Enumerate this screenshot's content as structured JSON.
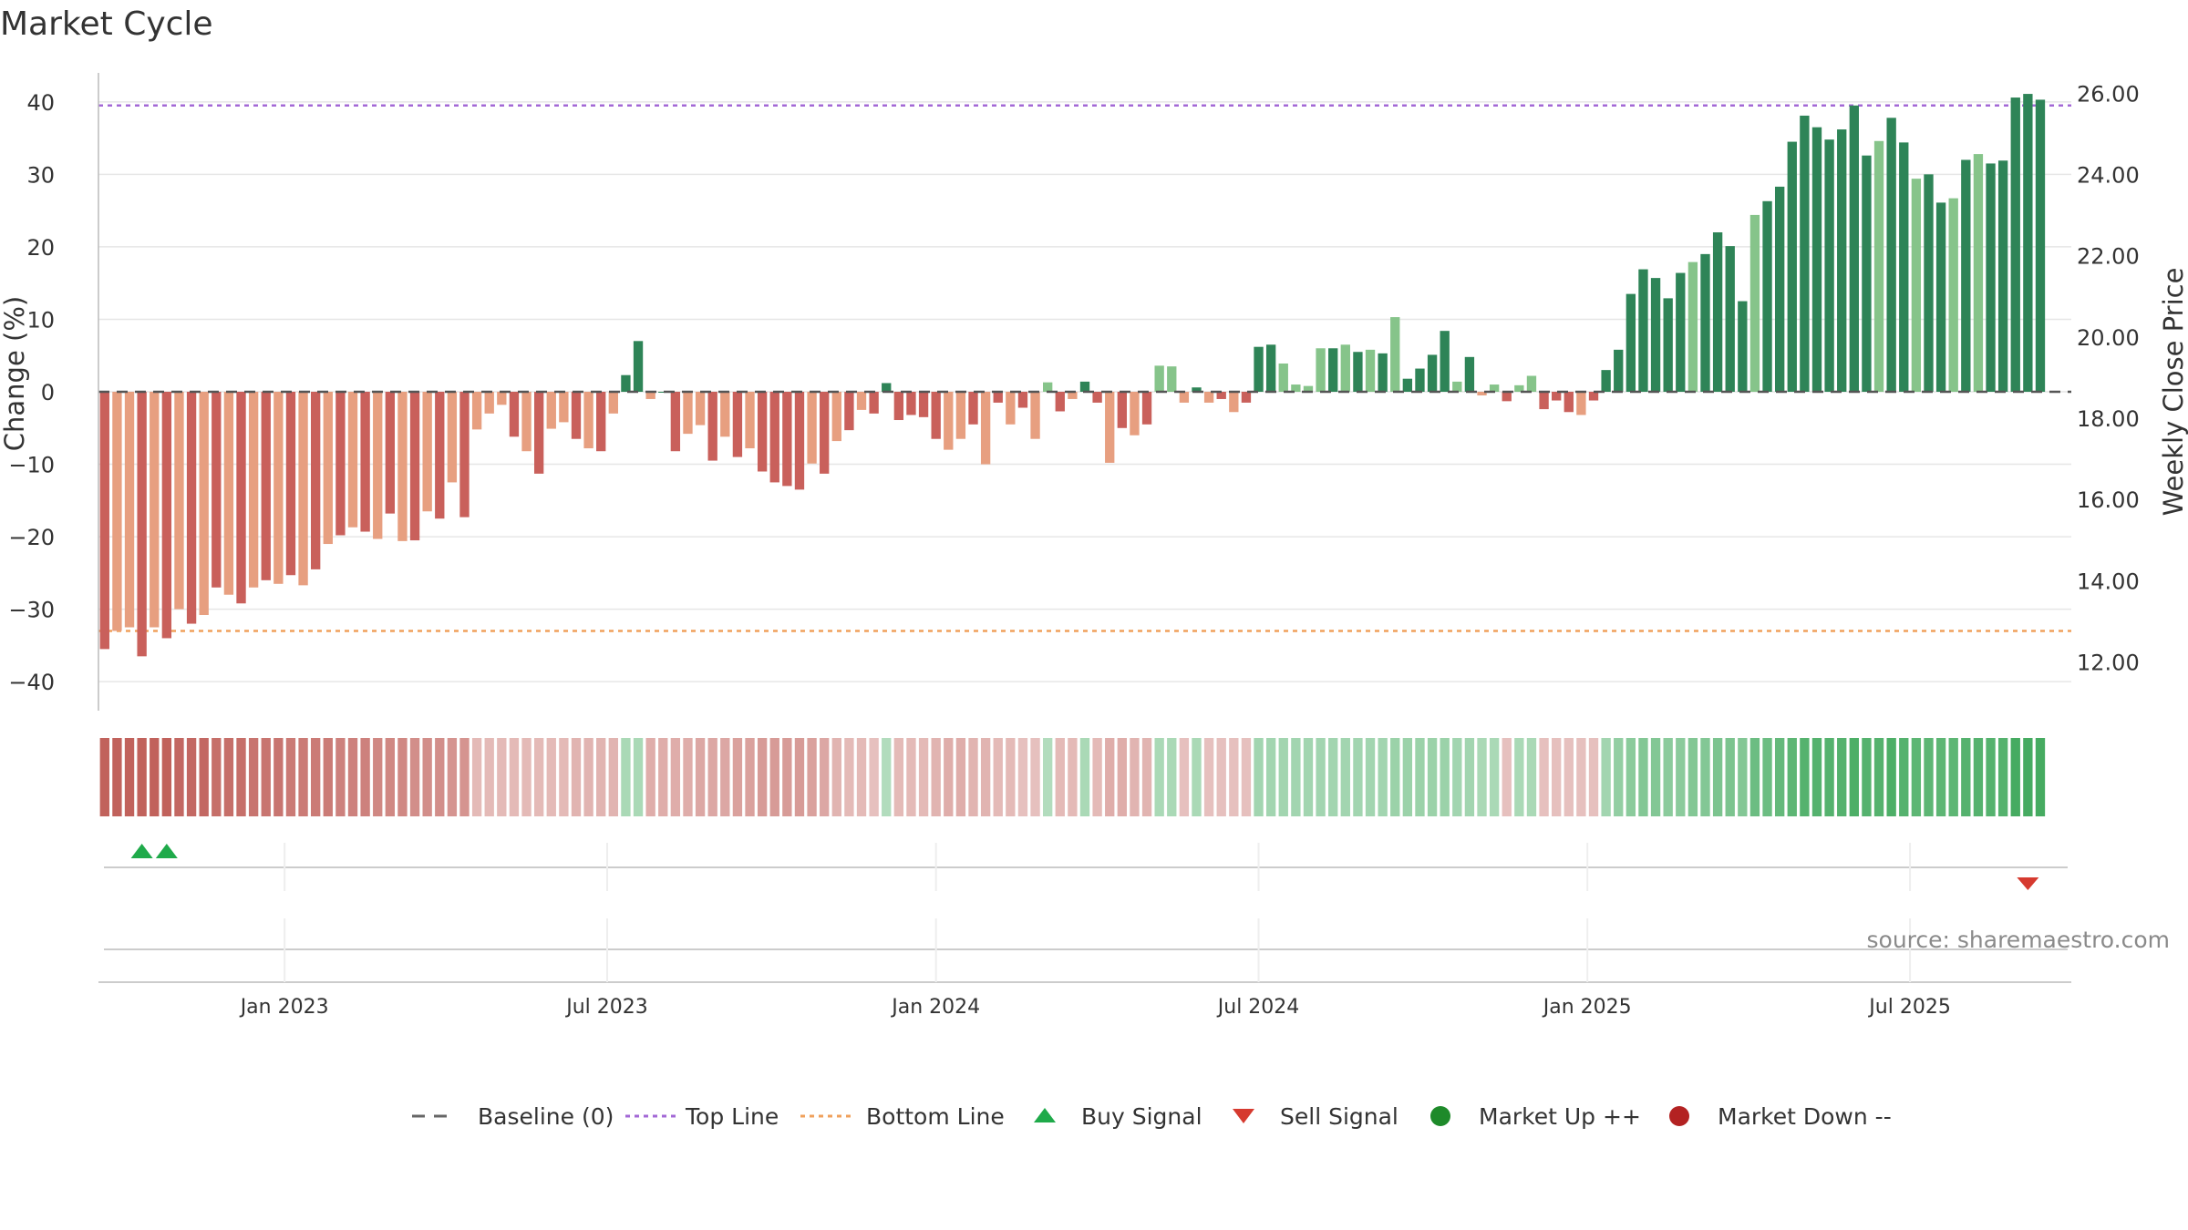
{
  "title": "Market Cycle",
  "source": "source: sharemaestro.com",
  "chart_data": {
    "type": "bar",
    "title": "Market Cycle",
    "ylabel_left": "Change (%)",
    "ylabel_right": "Weekly Close Price",
    "ylim": [
      -44,
      44
    ],
    "yticks_left": [
      40,
      30,
      20,
      10,
      0,
      -10,
      -20,
      -30,
      -40
    ],
    "yticks_left_labels": [
      "40",
      "30",
      "20",
      "10",
      "0",
      "−10",
      "−20",
      "−30",
      "−40"
    ],
    "ylim_right": [
      10.8,
      26.5
    ],
    "yticks_right": [
      26,
      24,
      22,
      20,
      18,
      16,
      14,
      12
    ],
    "yticks_right_labels": [
      "26.00",
      "24.00",
      "22.00",
      "20.00",
      "18.00",
      "16.00",
      "14.00",
      "12.00"
    ],
    "top_line": 39.5,
    "bottom_line": -33,
    "baseline": 0,
    "xlim_weeks": [
      0,
      159
    ],
    "xticks": [
      {
        "label": "Jan 2023",
        "week": 15
      },
      {
        "label": "Jul 2023",
        "week": 41
      },
      {
        "label": "Jan 2024",
        "week": 67.5
      },
      {
        "label": "Jul 2024",
        "week": 93.5
      },
      {
        "label": "Jan 2025",
        "week": 120
      },
      {
        "label": "Jul 2025",
        "week": 146
      }
    ],
    "values": [
      -35.5,
      -33,
      -32.5,
      -36.5,
      -32.5,
      -34,
      -30,
      -32,
      -30.8,
      -27,
      -28,
      -29.2,
      -27,
      -26,
      -26.5,
      -25.3,
      -26.7,
      -24.5,
      -21,
      -19.8,
      -18.7,
      -19.3,
      -20.3,
      -16.8,
      -20.6,
      -20.5,
      -16.5,
      -17.5,
      -12.5,
      -17.3,
      -5.2,
      -3,
      -1.8,
      -6.2,
      -8.2,
      -11.3,
      -5.1,
      -4.2,
      -6.5,
      -7.8,
      -8.2,
      -3,
      2.3,
      7,
      -1,
      0,
      -8.2,
      -5.8,
      -4.6,
      -9.5,
      -6.2,
      -9,
      -7.8,
      -11,
      -12.5,
      -13,
      -13.5,
      -9.9,
      -11.3,
      -6.8,
      -5.3,
      -2.5,
      -3,
      1.2,
      -3.9,
      -3.2,
      -3.5,
      -6.5,
      -8,
      -6.5,
      -4.5,
      -10,
      -1.5,
      -4.5,
      -2.2,
      -6.5,
      1.3,
      -2.7,
      -1,
      1.4,
      -1.5,
      -9.8,
      -5,
      -6,
      -4.5,
      3.6,
      3.5,
      -1.5,
      0.6,
      -1.5,
      -1,
      -2.8,
      -1.5,
      6.2,
      6.5,
      3.9,
      1,
      0.8,
      6,
      6,
      6.5,
      5.5,
      5.8,
      5.3,
      10.3,
      1.8,
      3.2,
      5.1,
      8.4,
      1.4,
      4.8,
      -0.5,
      1,
      -1.3,
      0.9,
      2.2,
      -2.4,
      -1.2,
      -2.8,
      -3.2,
      -1.2,
      3,
      5.8,
      13.5,
      16.9,
      15.7,
      12.9,
      16.4,
      17.9,
      19,
      22,
      20.1,
      12.5,
      24.4,
      26.3,
      28.3,
      34.5,
      38.1,
      36.5,
      34.8,
      36.2,
      39.5,
      32.6,
      34.6,
      37.8,
      34.4,
      29.4,
      30,
      26.1,
      26.7,
      32,
      32.8,
      31.5,
      31.9,
      40.6,
      41.1,
      40.3
    ],
    "dark_weeks": [
      0,
      3,
      5,
      7,
      9,
      11,
      13,
      15,
      17,
      19,
      21,
      23,
      25,
      27,
      29,
      33,
      35,
      38,
      40,
      42,
      43,
      45,
      46,
      49,
      51,
      53,
      54,
      55,
      56,
      58,
      60,
      62,
      63,
      64,
      65,
      66,
      67,
      70,
      72,
      74,
      77,
      79,
      80,
      82,
      84,
      88,
      90,
      92,
      93,
      94,
      99,
      101,
      103,
      105,
      106,
      107,
      108,
      110,
      113,
      116,
      117,
      118,
      120,
      121,
      122,
      123,
      124,
      125,
      126,
      127,
      129,
      130,
      131,
      132,
      134,
      135,
      136,
      137,
      138,
      139,
      140,
      141,
      142,
      144,
      145,
      147,
      148,
      150,
      152,
      153,
      154,
      155,
      156,
      157
    ],
    "strength": [
      -1,
      -1,
      -1,
      -1,
      -1,
      -1,
      -0.95,
      -0.95,
      -0.95,
      -0.9,
      -0.9,
      -0.9,
      -0.85,
      -0.85,
      -0.85,
      -0.8,
      -0.8,
      -0.8,
      -0.8,
      -0.75,
      -0.75,
      -0.75,
      -0.7,
      -0.7,
      -0.7,
      -0.65,
      -0.65,
      -0.65,
      -0.6,
      -0.6,
      -0.3,
      -0.3,
      -0.3,
      -0.3,
      -0.3,
      -0.3,
      -0.3,
      -0.3,
      -0.35,
      -0.35,
      -0.35,
      -0.35,
      0.3,
      0.3,
      -0.4,
      -0.4,
      -0.4,
      -0.4,
      -0.45,
      -0.45,
      -0.45,
      -0.5,
      -0.5,
      -0.55,
      -0.55,
      -0.55,
      -0.55,
      -0.5,
      -0.45,
      -0.35,
      -0.3,
      -0.3,
      -0.25,
      0.25,
      -0.3,
      -0.3,
      -0.3,
      -0.35,
      -0.4,
      -0.4,
      -0.35,
      -0.35,
      -0.3,
      -0.3,
      -0.25,
      -0.25,
      0.25,
      -0.3,
      -0.3,
      0.3,
      -0.3,
      -0.4,
      -0.4,
      -0.35,
      -0.35,
      0.3,
      0.3,
      -0.25,
      0.3,
      -0.25,
      -0.25,
      -0.25,
      -0.25,
      0.35,
      0.35,
      0.35,
      0.35,
      0.35,
      0.35,
      0.35,
      0.35,
      0.35,
      0.35,
      0.35,
      0.4,
      0.4,
      0.4,
      0.4,
      0.4,
      0.35,
      0.35,
      0.3,
      0.3,
      -0.25,
      0.3,
      0.3,
      -0.25,
      -0.25,
      -0.25,
      -0.25,
      -0.25,
      0.35,
      0.45,
      0.5,
      0.55,
      0.55,
      0.5,
      0.5,
      0.55,
      0.55,
      0.6,
      0.6,
      0.55,
      0.7,
      0.7,
      0.75,
      0.8,
      0.85,
      0.85,
      0.85,
      0.85,
      0.9,
      0.85,
      0.85,
      0.9,
      0.85,
      0.8,
      0.8,
      0.8,
      0.8,
      0.85,
      0.85,
      0.85,
      0.85,
      0.95,
      0.95,
      0.95
    ],
    "buy_signals_weeks": [
      3.5,
      5.5
    ],
    "sell_signals_weeks": [
      155.5
    ],
    "legend": [
      {
        "label": "Baseline (0)",
        "marker": "dash-line"
      },
      {
        "label": "Top Line",
        "marker": "dotted-line"
      },
      {
        "label": "Bottom Line",
        "marker": "dotted-line"
      },
      {
        "label": "Buy Signal",
        "marker": "triangle-up"
      },
      {
        "label": "Sell Signal",
        "marker": "triangle-down"
      },
      {
        "label": "Market Up ++",
        "marker": "circle"
      },
      {
        "label": "Market Down --",
        "marker": "circle"
      }
    ],
    "colors": {
      "bar_pos_dark": "#2e8457",
      "bar_pos_light": "#86c48a",
      "bar_neg_dark": "#c9605b",
      "bar_neg_light": "#e79f80",
      "top_line": "#a368d6",
      "bottom_line": "#f0a15c",
      "baseline": "#555555",
      "buy": "#1faa4a",
      "sell": "#d63a2f",
      "market_up": "#1e8a2a",
      "market_down": "#b32222",
      "strip_pos": "#3ea85a",
      "strip_neg": "#c1625c"
    }
  }
}
